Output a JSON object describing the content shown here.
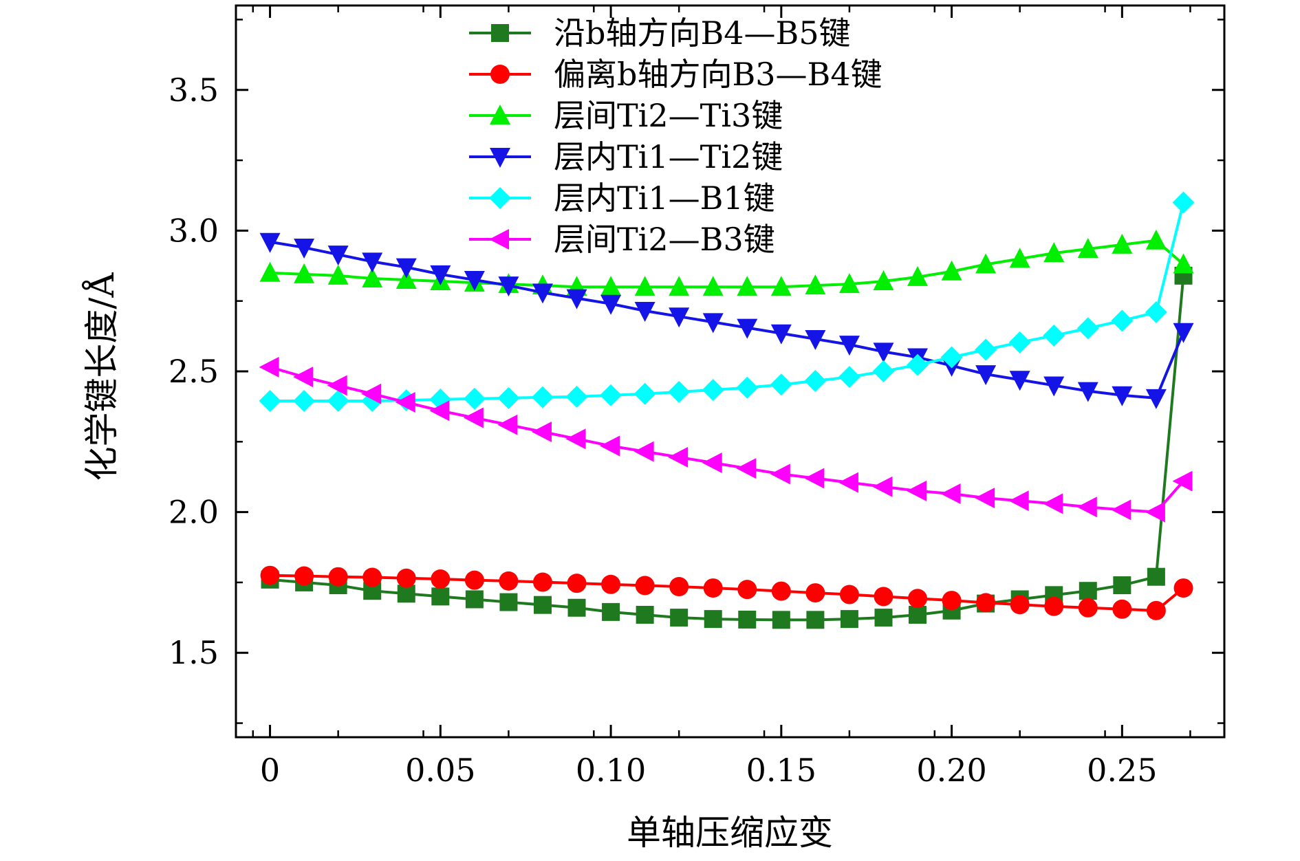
{
  "chart_data": {
    "type": "line",
    "xlabel": "单轴压缩应变",
    "ylabel": "化学键长度/Å",
    "xlim": [
      -0.01,
      0.28
    ],
    "ylim": [
      1.2,
      3.8
    ],
    "xticks": [
      0,
      0.05,
      0.1,
      0.15,
      0.2,
      0.25
    ],
    "xtick_labels": [
      "0",
      "0.05",
      "0.10",
      "0.15",
      "0.20",
      "0.25"
    ],
    "yticks": [
      1.5,
      2.0,
      2.5,
      3.0,
      3.5
    ],
    "ytick_labels": [
      "1.5",
      "2.0",
      "2.5",
      "3.0",
      "3.5"
    ],
    "grid": false,
    "legend_position": "top",
    "x": [
      0,
      0.01,
      0.02,
      0.03,
      0.04,
      0.05,
      0.06,
      0.07,
      0.08,
      0.09,
      0.1,
      0.11,
      0.12,
      0.13,
      0.14,
      0.15,
      0.16,
      0.17,
      0.18,
      0.19,
      0.2,
      0.21,
      0.22,
      0.23,
      0.24,
      0.25,
      0.26,
      0.268
    ],
    "series": [
      {
        "name": "沿b轴方向B4—B5键",
        "color": "#1f7a1f",
        "marker": "square",
        "values": [
          1.76,
          1.75,
          1.74,
          1.72,
          1.71,
          1.7,
          1.69,
          1.68,
          1.67,
          1.66,
          1.645,
          1.635,
          1.625,
          1.62,
          1.618,
          1.617,
          1.617,
          1.62,
          1.625,
          1.635,
          1.65,
          1.675,
          1.69,
          1.705,
          1.72,
          1.74,
          1.77,
          2.84
        ]
      },
      {
        "name": "偏离b轴方向B3—B4键",
        "color": "#ff0000",
        "marker": "circle",
        "values": [
          1.775,
          1.773,
          1.77,
          1.768,
          1.765,
          1.762,
          1.758,
          1.755,
          1.751,
          1.747,
          1.743,
          1.739,
          1.735,
          1.73,
          1.725,
          1.719,
          1.713,
          1.707,
          1.7,
          1.693,
          1.686,
          1.678,
          1.671,
          1.665,
          1.66,
          1.655,
          1.65,
          1.73
        ]
      },
      {
        "name": "层间Ti2—Ti3键",
        "color": "#00ee00",
        "marker": "triangle-up",
        "values": [
          2.85,
          2.845,
          2.84,
          2.83,
          2.825,
          2.82,
          2.815,
          2.81,
          2.805,
          2.8,
          2.8,
          2.8,
          2.8,
          2.8,
          2.8,
          2.8,
          2.805,
          2.81,
          2.82,
          2.835,
          2.855,
          2.88,
          2.9,
          2.92,
          2.935,
          2.95,
          2.965,
          2.88
        ]
      },
      {
        "name": "层内Ti1—Ti2键",
        "color": "#1414e6",
        "marker": "triangle-down",
        "values": [
          2.96,
          2.94,
          2.915,
          2.89,
          2.87,
          2.845,
          2.825,
          2.805,
          2.78,
          2.76,
          2.74,
          2.715,
          2.695,
          2.675,
          2.655,
          2.635,
          2.615,
          2.595,
          2.57,
          2.55,
          2.52,
          2.49,
          2.47,
          2.45,
          2.43,
          2.415,
          2.405,
          2.64
        ]
      },
      {
        "name": "层内Ti1—B1键",
        "color": "#00ffff",
        "marker": "diamond",
        "values": [
          2.395,
          2.395,
          2.395,
          2.395,
          2.397,
          2.4,
          2.403,
          2.405,
          2.408,
          2.41,
          2.415,
          2.42,
          2.427,
          2.434,
          2.442,
          2.453,
          2.466,
          2.48,
          2.5,
          2.523,
          2.55,
          2.577,
          2.603,
          2.627,
          2.653,
          2.68,
          2.71,
          3.1
        ]
      },
      {
        "name": "层间Ti2—B3键",
        "color": "#ff00ff",
        "marker": "triangle-left",
        "values": [
          2.515,
          2.48,
          2.45,
          2.42,
          2.39,
          2.36,
          2.335,
          2.31,
          2.285,
          2.26,
          2.235,
          2.215,
          2.195,
          2.175,
          2.155,
          2.135,
          2.12,
          2.105,
          2.09,
          2.075,
          2.065,
          2.05,
          2.04,
          2.03,
          2.018,
          2.008,
          2.0,
          2.11
        ]
      }
    ]
  }
}
